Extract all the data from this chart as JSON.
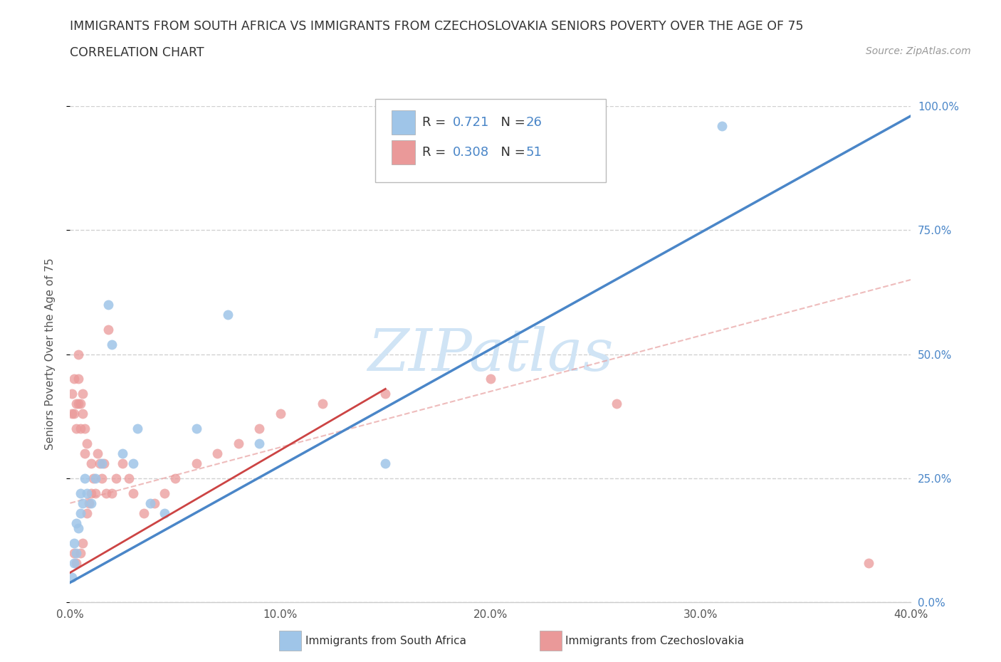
{
  "title_line1": "IMMIGRANTS FROM SOUTH AFRICA VS IMMIGRANTS FROM CZECHOSLOVAKIA SENIORS POVERTY OVER THE AGE OF 75",
  "title_line2": "CORRELATION CHART",
  "source_text": "Source: ZipAtlas.com",
  "ylabel": "Seniors Poverty Over the Age of 75",
  "xlabel_blue": "Immigrants from South Africa",
  "xlabel_pink": "Immigrants from Czechoslovakia",
  "xlim": [
    0.0,
    0.4
  ],
  "ylim": [
    0.0,
    1.0
  ],
  "xticks": [
    0.0,
    0.1,
    0.2,
    0.3,
    0.4
  ],
  "xtick_labels": [
    "0.0%",
    "10.0%",
    "20.0%",
    "30.0%",
    "40.0%"
  ],
  "yticks": [
    0.0,
    0.25,
    0.5,
    0.75,
    1.0
  ],
  "ytick_labels": [
    "0.0%",
    "25.0%",
    "50.0%",
    "75.0%",
    "100.0%"
  ],
  "blue_R": 0.721,
  "blue_N": 26,
  "pink_R": 0.308,
  "pink_N": 51,
  "blue_color": "#9fc5e8",
  "pink_color": "#ea9999",
  "blue_line_color": "#4a86c8",
  "pink_line_color": "#cc4444",
  "pink_dash_color": "#e8a0a0",
  "watermark_text": "ZIPatlas",
  "watermark_color": "#d0e4f5",
  "blue_scatter_x": [
    0.001,
    0.002,
    0.002,
    0.003,
    0.003,
    0.004,
    0.005,
    0.005,
    0.006,
    0.007,
    0.008,
    0.01,
    0.012,
    0.015,
    0.018,
    0.02,
    0.025,
    0.03,
    0.032,
    0.038,
    0.045,
    0.06,
    0.075,
    0.09,
    0.15,
    0.31
  ],
  "blue_scatter_y": [
    0.05,
    0.08,
    0.12,
    0.1,
    0.16,
    0.15,
    0.18,
    0.22,
    0.2,
    0.25,
    0.22,
    0.2,
    0.25,
    0.28,
    0.6,
    0.52,
    0.3,
    0.28,
    0.35,
    0.2,
    0.18,
    0.35,
    0.58,
    0.32,
    0.28,
    0.96
  ],
  "pink_scatter_x": [
    0.001,
    0.001,
    0.002,
    0.002,
    0.002,
    0.003,
    0.003,
    0.003,
    0.004,
    0.004,
    0.004,
    0.005,
    0.005,
    0.005,
    0.006,
    0.006,
    0.006,
    0.007,
    0.007,
    0.008,
    0.008,
    0.009,
    0.01,
    0.01,
    0.011,
    0.012,
    0.013,
    0.014,
    0.015,
    0.016,
    0.017,
    0.018,
    0.02,
    0.022,
    0.025,
    0.028,
    0.03,
    0.035,
    0.04,
    0.045,
    0.05,
    0.06,
    0.07,
    0.08,
    0.09,
    0.1,
    0.12,
    0.15,
    0.2,
    0.26,
    0.38
  ],
  "pink_scatter_y": [
    0.38,
    0.42,
    0.1,
    0.38,
    0.45,
    0.08,
    0.35,
    0.4,
    0.4,
    0.45,
    0.5,
    0.1,
    0.35,
    0.4,
    0.12,
    0.38,
    0.42,
    0.3,
    0.35,
    0.18,
    0.32,
    0.2,
    0.22,
    0.28,
    0.25,
    0.22,
    0.3,
    0.28,
    0.25,
    0.28,
    0.22,
    0.55,
    0.22,
    0.25,
    0.28,
    0.25,
    0.22,
    0.18,
    0.2,
    0.22,
    0.25,
    0.28,
    0.3,
    0.32,
    0.35,
    0.38,
    0.4,
    0.42,
    0.45,
    0.4,
    0.08
  ],
  "blue_line_x": [
    0.0,
    0.4
  ],
  "blue_line_y": [
    0.04,
    0.98
  ],
  "pink_solid_line_x": [
    0.0,
    0.15
  ],
  "pink_solid_line_y": [
    0.06,
    0.43
  ],
  "pink_dash_line_x": [
    0.0,
    0.4
  ],
  "pink_dash_line_y": [
    0.2,
    0.65
  ],
  "grid_color": "#cccccc",
  "background_color": "#ffffff"
}
